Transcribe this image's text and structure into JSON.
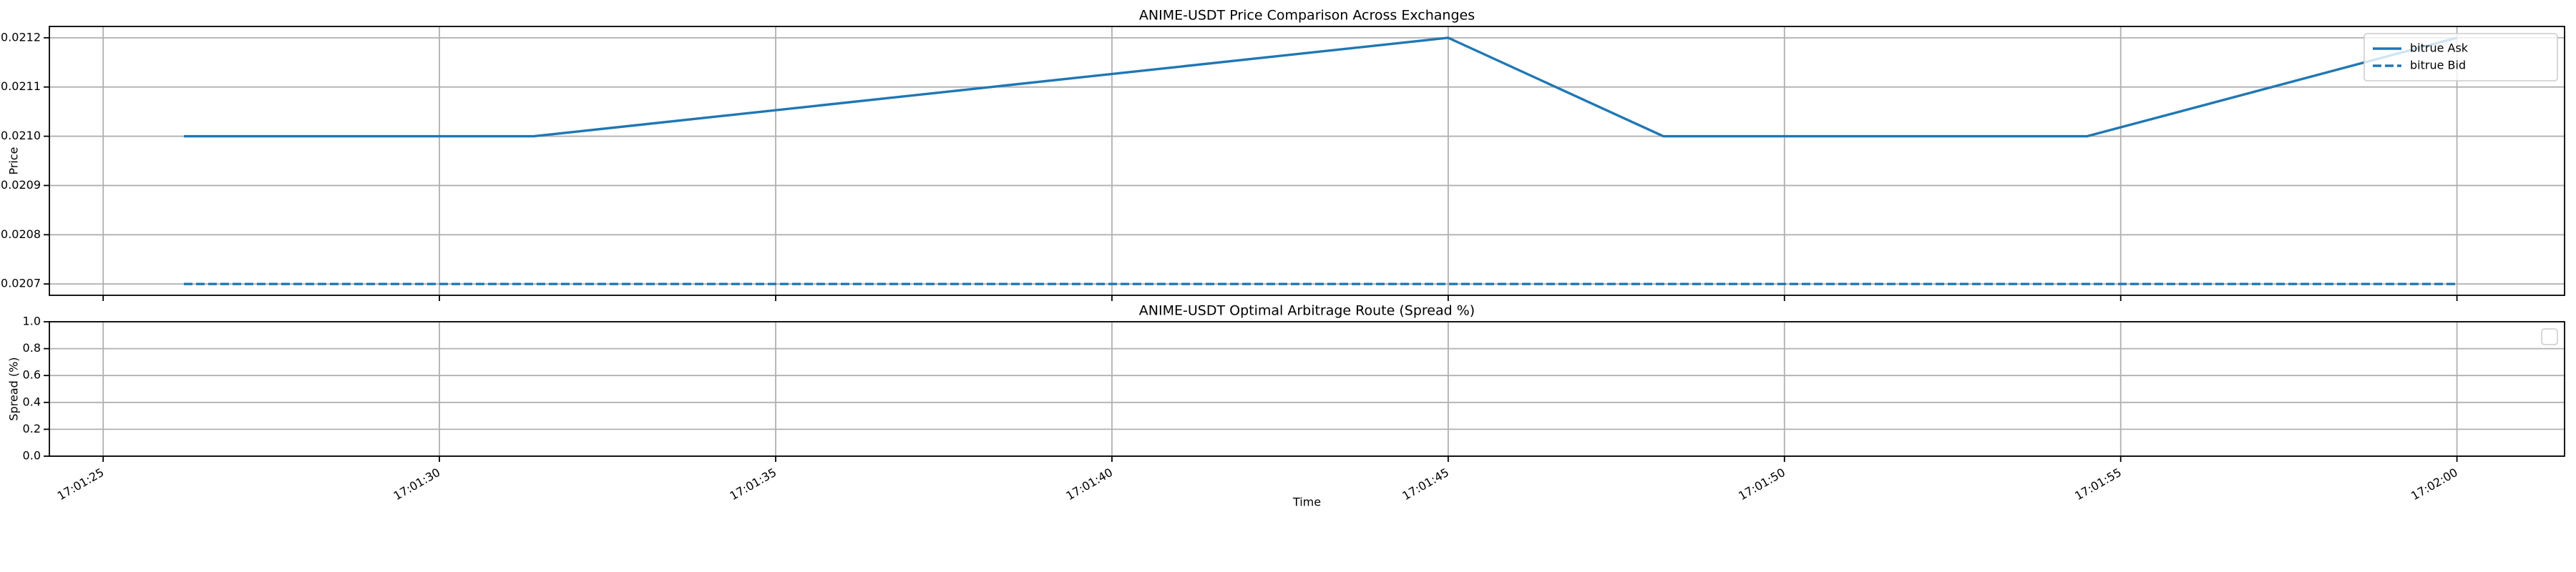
{
  "chart_data": [
    {
      "type": "line",
      "title": "ANIME-USDT Price Comparison Across Exchanges",
      "ylabel": "Price",
      "x": [
        "17:01:26.2",
        "17:01:31.4",
        "17:01:45.0",
        "17:01:48.2",
        "17:01:54.5",
        "17:02:00.0"
      ],
      "series": [
        {
          "name": "bitrue Ask",
          "color": "#1f77b4",
          "linestyle": "solid",
          "values": [
            0.021,
            0.021,
            0.0212,
            0.021,
            0.021,
            0.0212
          ]
        },
        {
          "name": "bitrue Bid",
          "color": "#1f77b4",
          "linestyle": "dashed",
          "values": [
            0.0207,
            0.0207,
            0.0207,
            0.0207,
            0.0207,
            0.0207
          ]
        }
      ],
      "xlim": [
        "17:01:24.2",
        "17:02:01.6"
      ],
      "xticks": [
        "17:01:25",
        "17:01:30",
        "17:01:35",
        "17:01:40",
        "17:01:45",
        "17:01:50",
        "17:01:55",
        "17:02:00"
      ],
      "ylim": [
        0.020677,
        0.021223
      ],
      "yticks": [
        0.0207,
        0.0208,
        0.0209,
        {
          "value": 0.021,
          "label": "0.0210"
        },
        0.0211,
        0.0212
      ],
      "grid": true,
      "legend": "upper right"
    },
    {
      "type": "line",
      "title": "ANIME-USDT Optimal Arbitrage Route (Spread %)",
      "xlabel": "Time",
      "ylabel": "Spread (%)",
      "x": [],
      "series": [],
      "xlim": [
        "17:01:24.2",
        "17:02:01.6"
      ],
      "xticks": [
        "17:01:25",
        "17:01:30",
        "17:01:35",
        "17:01:40",
        "17:01:45",
        "17:01:50",
        "17:01:55",
        "17:02:00"
      ],
      "ylim": [
        0,
        1
      ],
      "yticks": [
        {
          "value": 0,
          "label": "0.0"
        },
        0.2,
        0.4,
        0.6,
        0.8,
        {
          "value": 1,
          "label": "1.0"
        }
      ],
      "grid": true,
      "legend": "upper right"
    }
  ]
}
